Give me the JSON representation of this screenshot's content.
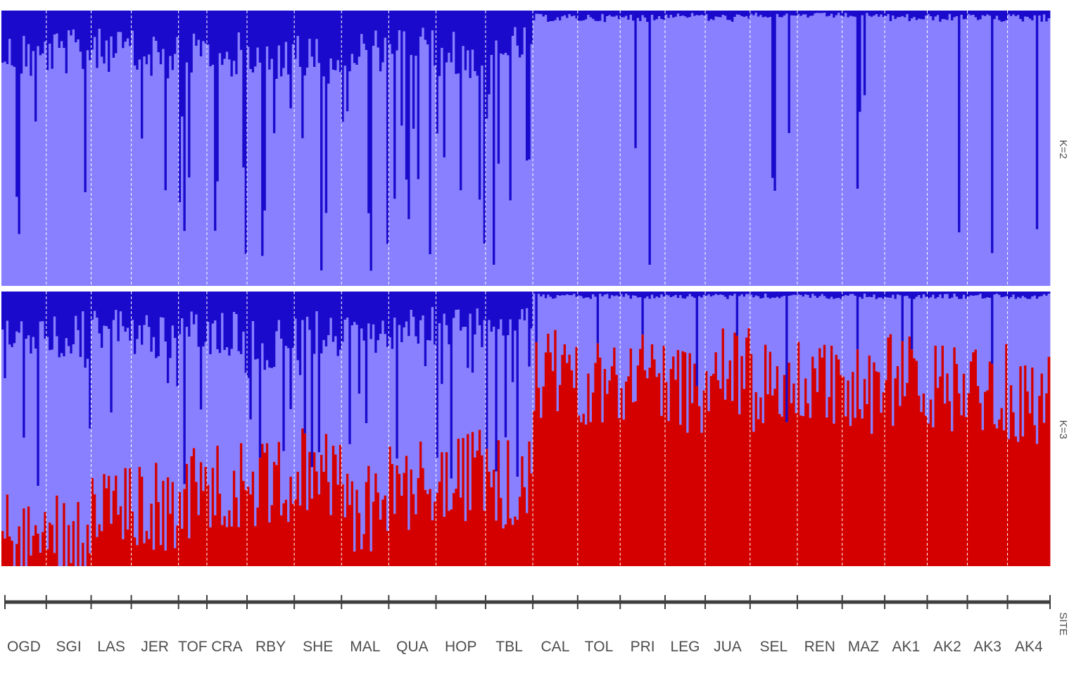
{
  "chart_data": {
    "type": "bar",
    "stacked": true,
    "normalized": true,
    "grid": false,
    "legend": "none",
    "colors": {
      "cluster_dark_blue": "#1a0acc",
      "cluster_light_blue": "#8880ff",
      "cluster_red": "#d40000",
      "site_divider": "#ffffff",
      "axis": "#3f3f3f"
    },
    "x_axis_label": "SITE",
    "panels": [
      {
        "label": "K=2",
        "series": [
          {
            "name": "",
            "color_key": "cluster_dark_blue",
            "site_means": [
              0.18,
              0.17,
              0.16,
              0.18,
              0.17,
              0.18,
              0.19,
              0.2,
              0.16,
              0.15,
              0.18,
              0.14,
              0.03,
              0.03,
              0.03,
              0.02,
              0.03,
              0.02,
              0.02,
              0.02,
              0.03,
              0.03,
              0.03,
              0.03
            ]
          },
          {
            "name": "",
            "color_key": "cluster_light_blue",
            "site_means": [
              0.82,
              0.83,
              0.84,
              0.82,
              0.83,
              0.82,
              0.81,
              0.8,
              0.84,
              0.85,
              0.82,
              0.86,
              0.97,
              0.97,
              0.97,
              0.98,
              0.97,
              0.98,
              0.98,
              0.98,
              0.97,
              0.97,
              0.97,
              0.97
            ]
          }
        ]
      },
      {
        "label": "K=3",
        "series": [
          {
            "name": "",
            "color_key": "cluster_red",
            "site_means": [
              0.1,
              0.12,
              0.2,
              0.22,
              0.27,
              0.3,
              0.3,
              0.35,
              0.2,
              0.3,
              0.33,
              0.3,
              0.7,
              0.68,
              0.7,
              0.65,
              0.7,
              0.65,
              0.68,
              0.62,
              0.68,
              0.65,
              0.65,
              0.6
            ]
          },
          {
            "name": "",
            "color_key": "cluster_light_blue",
            "site_means": [
              0.72,
              0.7,
              0.65,
              0.6,
              0.55,
              0.52,
              0.5,
              0.47,
              0.64,
              0.56,
              0.52,
              0.58,
              0.28,
              0.3,
              0.28,
              0.33,
              0.28,
              0.33,
              0.3,
              0.36,
              0.3,
              0.33,
              0.33,
              0.38
            ]
          },
          {
            "name": "",
            "color_key": "cluster_dark_blue",
            "site_means": [
              0.18,
              0.18,
              0.15,
              0.18,
              0.18,
              0.18,
              0.2,
              0.18,
              0.16,
              0.14,
              0.15,
              0.12,
              0.02,
              0.02,
              0.02,
              0.02,
              0.02,
              0.02,
              0.02,
              0.02,
              0.02,
              0.02,
              0.02,
              0.02
            ]
          }
        ]
      }
    ],
    "sites": [
      {
        "name": "OGD",
        "n": 19
      },
      {
        "name": "SGI",
        "n": 19
      },
      {
        "name": "LAS",
        "n": 17
      },
      {
        "name": "JER",
        "n": 20
      },
      {
        "name": "TOF",
        "n": 12
      },
      {
        "name": "CRA",
        "n": 17
      },
      {
        "name": "RBY",
        "n": 20
      },
      {
        "name": "SHE",
        "n": 20
      },
      {
        "name": "MAL",
        "n": 20
      },
      {
        "name": "QUA",
        "n": 20
      },
      {
        "name": "HOP",
        "n": 21
      },
      {
        "name": "TBL",
        "n": 20
      },
      {
        "name": "CAL",
        "n": 19
      },
      {
        "name": "TOL",
        "n": 18
      },
      {
        "name": "PRI",
        "n": 19
      },
      {
        "name": "LEG",
        "n": 17
      },
      {
        "name": "JUA",
        "n": 19
      },
      {
        "name": "SEL",
        "n": 20
      },
      {
        "name": "REN",
        "n": 19
      },
      {
        "name": "MAZ",
        "n": 18
      },
      {
        "name": "AK1",
        "n": 18
      },
      {
        "name": "AK2",
        "n": 17
      },
      {
        "name": "AK3",
        "n": 17
      },
      {
        "name": "AK4",
        "n": 18
      }
    ]
  }
}
